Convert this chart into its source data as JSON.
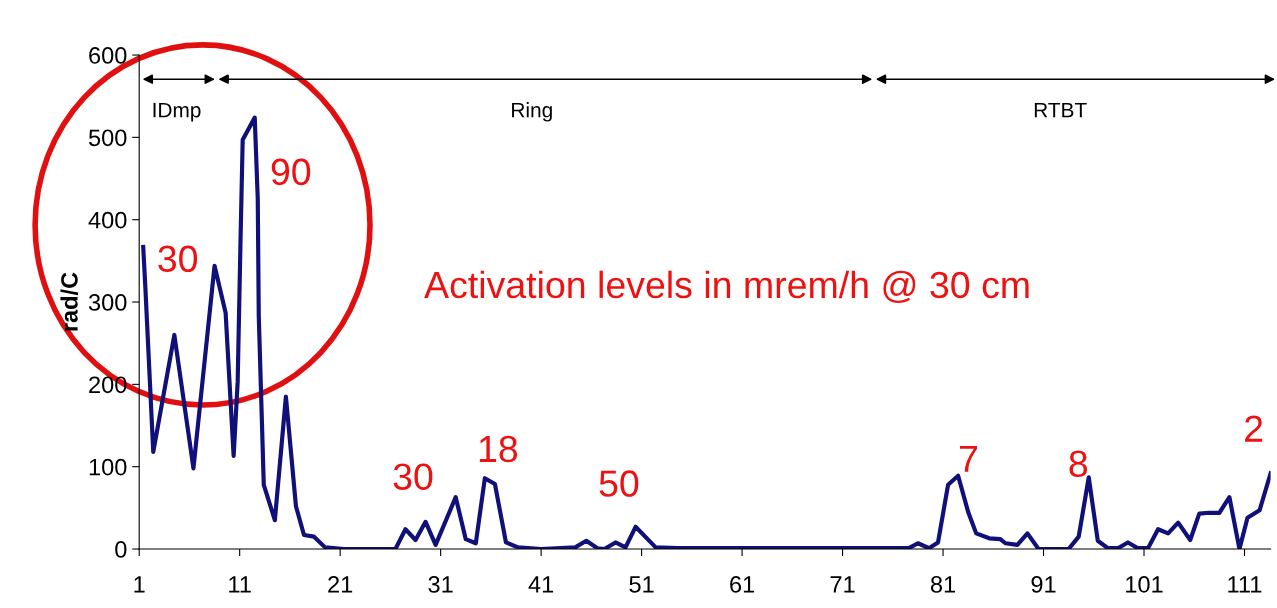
{
  "chart_data": {
    "type": "line",
    "ylabel": "rad/C",
    "x": [
      1.4,
      1.6,
      1.9,
      2.4,
      4.5,
      6.4,
      8.5,
      9.6,
      10.4,
      10.8,
      11.1,
      11.3,
      12.5,
      12.8,
      12.9,
      13.4,
      14.5,
      15.6,
      16.6,
      17.4,
      18.4,
      19.5,
      21.4,
      26.5,
      27.5,
      28.5,
      29.5,
      30.5,
      32.5,
      33.5,
      34.5,
      35.4,
      36.4,
      37.5,
      38.7,
      41,
      44.4,
      45.5,
      46.6,
      47.3,
      48.4,
      49.4,
      50.4,
      52.4,
      54.6,
      77.6,
      78.5,
      79.6,
      80.5,
      81.5,
      82.5,
      83.5,
      84.3,
      85.6,
      86.7,
      87.2,
      88.4,
      89.4,
      90.5,
      93.5,
      94.5,
      95.5,
      96.4,
      97.4,
      98.4,
      99.4,
      100.4,
      101.4,
      102.4,
      103.4,
      104.4,
      105.6,
      106.5,
      107.5,
      108.5,
      109.5,
      110.5,
      111.3,
      112.5,
      113.6
    ],
    "series": [
      {
        "color": "#10107a",
        "values": [
          367,
          321,
          245,
          118,
          260,
          98,
          344,
          287,
          113,
          203,
          384,
          497,
          524,
          425,
          283,
          78,
          35,
          185,
          52,
          17,
          15,
          2,
          0,
          0,
          24,
          11,
          33,
          5,
          63,
          12,
          7,
          86,
          79,
          8,
          2,
          0,
          2,
          10,
          1,
          0,
          8,
          2,
          27,
          2,
          1,
          1,
          7,
          1,
          8,
          78,
          89,
          45,
          19,
          13,
          12,
          7,
          5,
          19,
          0,
          0,
          15,
          87,
          10,
          1,
          1,
          8,
          1,
          1,
          24,
          19,
          32,
          11,
          43,
          44,
          44,
          63,
          0,
          38,
          47,
          92
        ]
      }
    ],
    "xlim": [
      1,
      113.6
    ],
    "xticks": [
      1,
      11,
      21,
      31,
      41,
      51,
      61,
      71,
      81,
      91,
      101,
      111
    ],
    "ylim": [
      0,
      600
    ],
    "yticks": [
      0,
      100,
      200,
      300,
      400,
      500,
      600
    ],
    "grid": false,
    "legend": false,
    "marker": "none",
    "line_style": "solid",
    "annotations": [
      "IDmp",
      "Ring",
      "RTBT",
      "Activation levels in mrem/h @ 30 cm",
      "30",
      "90",
      "30",
      "18",
      "50",
      "7",
      "8",
      "2"
    ]
  }
}
